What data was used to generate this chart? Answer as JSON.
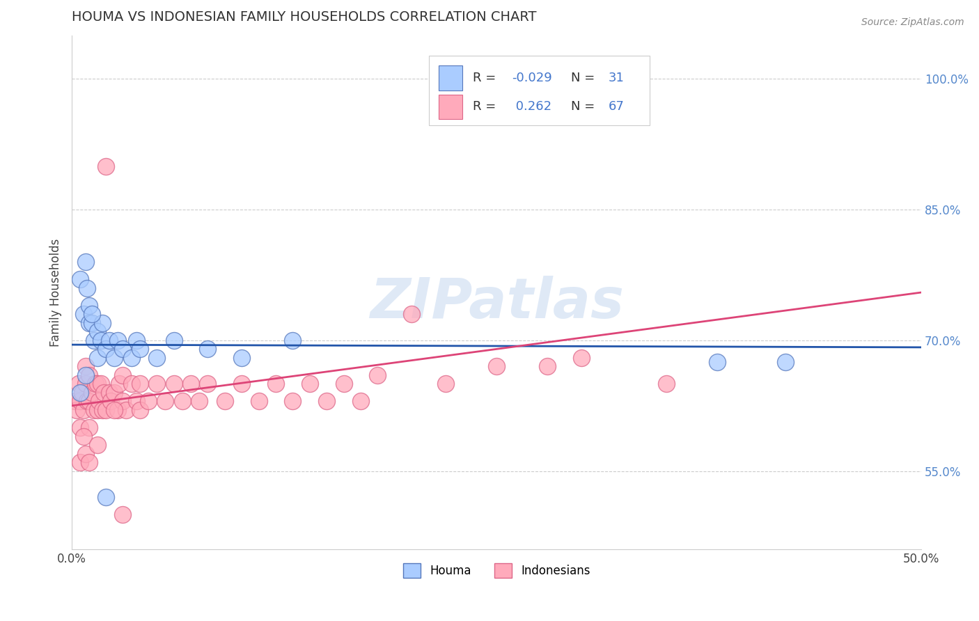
{
  "title": "HOUMA VS INDONESIAN FAMILY HOUSEHOLDS CORRELATION CHART",
  "source": "Source: ZipAtlas.com",
  "ylabel": "Family Households",
  "xlim": [
    0.0,
    0.5
  ],
  "ylim": [
    0.46,
    1.05
  ],
  "x_ticks": [
    0.0,
    0.5
  ],
  "x_tick_labels": [
    "0.0%",
    "50.0%"
  ],
  "y_ticks": [
    0.55,
    0.7,
    0.85,
    1.0
  ],
  "y_tick_labels": [
    "55.0%",
    "70.0%",
    "85.0%",
    "100.0%"
  ],
  "grid_color": "#cccccc",
  "background_color": "#ffffff",
  "houma_color": "#aaccff",
  "indonesian_color": "#ffaabb",
  "houma_edge_color": "#5577bb",
  "indonesian_edge_color": "#dd6688",
  "houma_line_color": "#2255aa",
  "indonesian_line_color": "#dd4477",
  "houma_R": -0.029,
  "houma_N": 31,
  "indonesian_R": 0.262,
  "indonesian_N": 67,
  "watermark": "ZIPatlas",
  "houma_x": [
    0.005,
    0.007,
    0.008,
    0.009,
    0.01,
    0.01,
    0.012,
    0.013,
    0.015,
    0.015,
    0.017,
    0.018,
    0.02,
    0.022,
    0.025,
    0.027,
    0.03,
    0.035,
    0.038,
    0.04,
    0.05,
    0.06,
    0.08,
    0.1,
    0.13,
    0.38,
    0.42,
    0.005,
    0.008,
    0.012,
    0.02
  ],
  "houma_y": [
    0.77,
    0.73,
    0.79,
    0.76,
    0.72,
    0.74,
    0.72,
    0.7,
    0.71,
    0.68,
    0.7,
    0.72,
    0.69,
    0.7,
    0.68,
    0.7,
    0.69,
    0.68,
    0.7,
    0.69,
    0.68,
    0.7,
    0.69,
    0.68,
    0.7,
    0.675,
    0.675,
    0.64,
    0.66,
    0.73,
    0.52
  ],
  "indonesian_x": [
    0.002,
    0.003,
    0.004,
    0.005,
    0.005,
    0.006,
    0.007,
    0.008,
    0.008,
    0.009,
    0.01,
    0.01,
    0.01,
    0.012,
    0.013,
    0.014,
    0.015,
    0.015,
    0.016,
    0.017,
    0.018,
    0.019,
    0.02,
    0.022,
    0.023,
    0.025,
    0.027,
    0.028,
    0.03,
    0.03,
    0.032,
    0.035,
    0.038,
    0.04,
    0.04,
    0.045,
    0.05,
    0.055,
    0.06,
    0.065,
    0.07,
    0.075,
    0.08,
    0.09,
    0.1,
    0.11,
    0.12,
    0.13,
    0.14,
    0.15,
    0.16,
    0.17,
    0.18,
    0.2,
    0.22,
    0.25,
    0.28,
    0.3,
    0.35,
    0.02,
    0.005,
    0.007,
    0.008,
    0.01,
    0.015,
    0.025,
    0.03
  ],
  "indonesian_y": [
    0.63,
    0.62,
    0.65,
    0.6,
    0.63,
    0.64,
    0.62,
    0.65,
    0.67,
    0.63,
    0.6,
    0.63,
    0.66,
    0.64,
    0.62,
    0.65,
    0.62,
    0.65,
    0.63,
    0.65,
    0.62,
    0.64,
    0.62,
    0.64,
    0.63,
    0.64,
    0.62,
    0.65,
    0.63,
    0.66,
    0.62,
    0.65,
    0.63,
    0.62,
    0.65,
    0.63,
    0.65,
    0.63,
    0.65,
    0.63,
    0.65,
    0.63,
    0.65,
    0.63,
    0.65,
    0.63,
    0.65,
    0.63,
    0.65,
    0.63,
    0.65,
    0.63,
    0.66,
    0.73,
    0.65,
    0.67,
    0.67,
    0.68,
    0.65,
    0.9,
    0.56,
    0.59,
    0.57,
    0.56,
    0.58,
    0.62,
    0.5
  ],
  "houma_line_y0": 0.695,
  "houma_line_y1": 0.692,
  "indonesian_line_y0": 0.625,
  "indonesian_line_y1": 0.755
}
